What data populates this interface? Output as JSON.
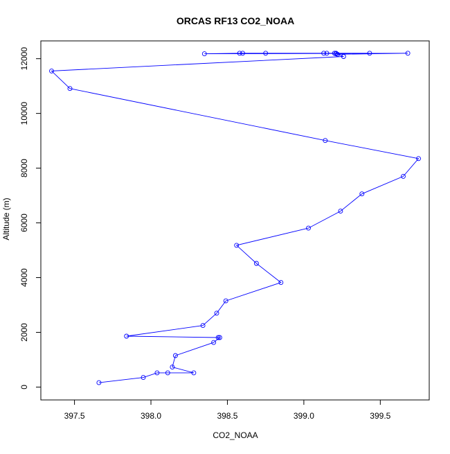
{
  "chart_data": {
    "type": "line",
    "title": "ORCAS RF13 CO2_NOAA",
    "xlabel": "CO2_NOAA",
    "ylabel": "Altitude (m)",
    "xlim": [
      397.28,
      399.82
    ],
    "ylim": [
      -470,
      12650
    ],
    "xticks": [
      397.5,
      398.0,
      398.5,
      399.0,
      399.5
    ],
    "xtick_labels": [
      "397.5",
      "398.0",
      "398.5",
      "399.0",
      "399.5"
    ],
    "yticks": [
      0,
      2000,
      4000,
      6000,
      8000,
      10000,
      12000
    ],
    "ytick_labels": [
      "0",
      "2000",
      "4000",
      "6000",
      "8000",
      "10000",
      "12000"
    ],
    "grid": false,
    "series": [
      {
        "color": "#0000ff",
        "marker": "open-circle",
        "x": [
          397.66,
          397.95,
          398.04,
          398.11,
          398.28,
          398.14,
          398.16,
          398.41,
          398.45,
          398.44,
          397.84,
          398.34,
          398.43,
          398.49,
          398.85,
          398.69,
          398.56,
          399.03,
          399.24,
          399.38,
          399.65,
          399.75,
          399.14,
          397.47,
          397.35,
          399.26,
          399.22,
          399.68,
          398.35,
          398.58,
          398.6,
          398.75,
          399.13,
          399.15,
          399.2,
          399.21,
          399.43,
          399.21
        ],
        "y": [
          160,
          350,
          520,
          520,
          520,
          730,
          1150,
          1630,
          1810,
          1810,
          1860,
          2250,
          2700,
          3150,
          3820,
          4520,
          5180,
          5810,
          6430,
          7060,
          7700,
          8350,
          9010,
          10910,
          11550,
          12080,
          12160,
          12200,
          12180,
          12200,
          12200,
          12200,
          12200,
          12200,
          12200,
          12200,
          12200,
          12180
        ]
      }
    ]
  }
}
